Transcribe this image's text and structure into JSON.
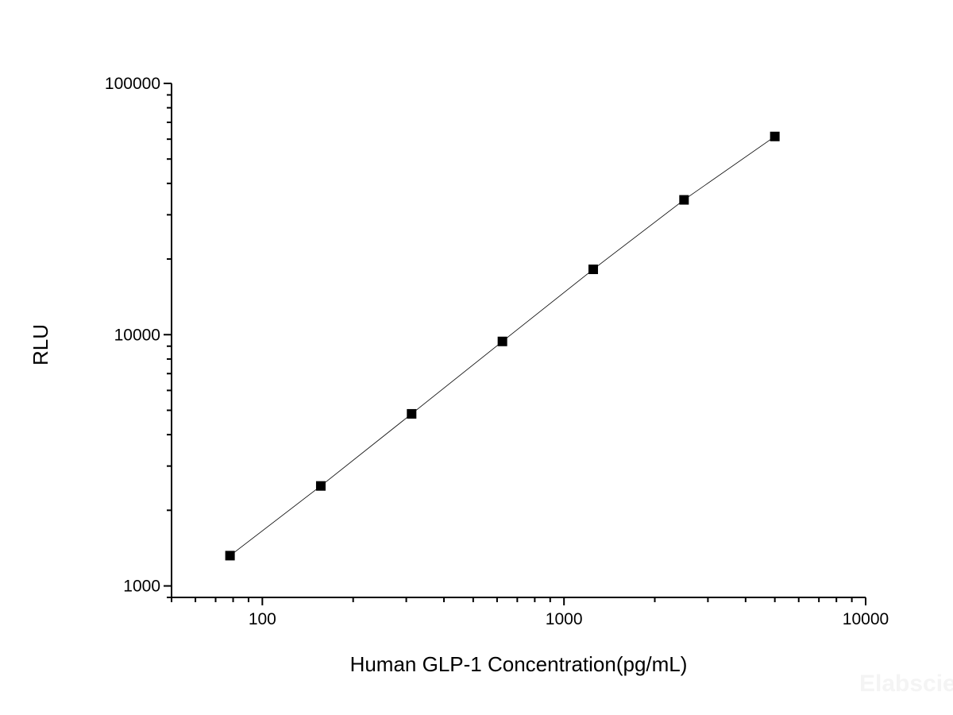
{
  "chart_data": {
    "type": "scatter",
    "title": "",
    "xlabel": "Human GLP-1 Concentration(pg/mL)",
    "ylabel": "RLU",
    "xscale": "log",
    "yscale": "log",
    "xlim": [
      50,
      10000
    ],
    "ylim": [
      900,
      100000
    ],
    "xticks": [
      100,
      1000,
      10000
    ],
    "xtick_labels": [
      "100",
      "1000",
      "10000"
    ],
    "yticks": [
      1000,
      10000,
      100000
    ],
    "ytick_labels": [
      "1000",
      "10000",
      "100000"
    ],
    "grid": false,
    "legend": "none",
    "series": [
      {
        "marker": "square",
        "line": "connected",
        "color": "#000000",
        "x": [
          78.125,
          156.25,
          312.5,
          625,
          1250,
          2500,
          5000
        ],
        "y": [
          1320,
          2500,
          4840,
          9400,
          18200,
          34400,
          61500
        ]
      }
    ],
    "watermark": "Elabscien"
  }
}
